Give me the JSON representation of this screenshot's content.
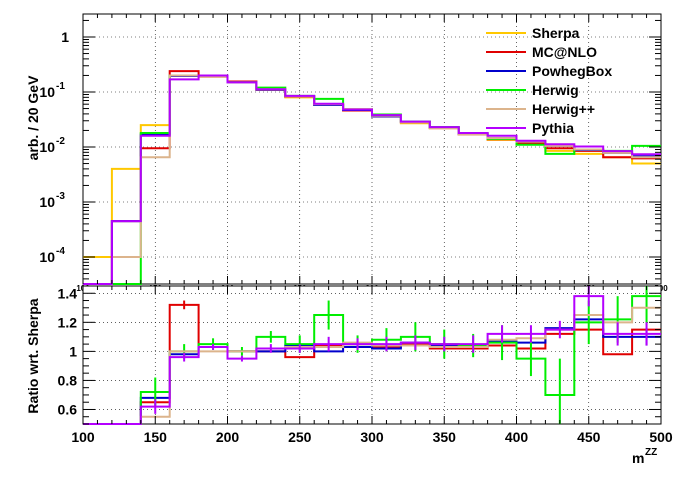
{
  "colors": {
    "Sherpa": "#ffc800",
    "MC@NLO": "#e00000",
    "PowhegBox": "#0000cc",
    "Herwig": "#00ee00",
    "Herwig++": "#dcb48c",
    "Pythia": "#b400ff"
  },
  "chart_data": [
    {
      "type": "line",
      "title": "",
      "ylabel": "arb. / 20 GeV",
      "xlabel": "",
      "x_bin_edges": [
        100,
        120,
        140,
        160,
        180,
        200,
        220,
        240,
        260,
        280,
        300,
        320,
        340,
        360,
        380,
        400,
        420,
        440,
        460,
        480,
        500
      ],
      "xlim": [
        100,
        500
      ],
      "ylim": [
        2e-05,
        5
      ],
      "log_y": true,
      "x_ticks": [
        "100",
        "150",
        "200",
        "250",
        "300",
        "350",
        "400",
        "450",
        "500"
      ],
      "y_ticks": [
        "1",
        "10^-1",
        "10^-2",
        "10^-3",
        "10^-4"
      ],
      "grid": true,
      "legend_position": "top-right",
      "series": [
        {
          "name": "Sherpa",
          "values": [
            0.0001,
            0.004,
            0.025,
            0.2,
            0.19,
            0.15,
            0.11,
            0.08,
            0.06,
            0.046,
            0.036,
            0.027,
            0.022,
            0.017,
            0.0135,
            0.0115,
            0.0085,
            0.0075,
            0.0065,
            0.005
          ]
        },
        {
          "name": "MC@NLO",
          "values": [
            2e-05,
            0.00045,
            0.0095,
            0.24,
            0.19,
            0.155,
            0.11,
            0.082,
            0.058,
            0.046,
            0.036,
            0.028,
            0.022,
            0.017,
            0.0138,
            0.0117,
            0.0095,
            0.0085,
            0.0065,
            0.0062
          ]
        },
        {
          "name": "PowhegBox",
          "values": [
            2e-05,
            0.00045,
            0.017,
            0.195,
            0.195,
            0.15,
            0.11,
            0.083,
            0.058,
            0.047,
            0.036,
            0.029,
            0.023,
            0.0175,
            0.0145,
            0.0125,
            0.0105,
            0.0088,
            0.0078,
            0.0068
          ]
        },
        {
          "name": "Herwig",
          "values": [
            2e-05,
            2e-05,
            0.018,
            0.2,
            0.2,
            0.15,
            0.12,
            0.085,
            0.075,
            0.048,
            0.039,
            0.029,
            0.023,
            0.018,
            0.014,
            0.011,
            0.0075,
            0.009,
            0.0085,
            0.0105
          ]
        },
        {
          "name": "Herwig++",
          "values": [
            2e-05,
            0.0001,
            0.0065,
            0.2,
            0.19,
            0.15,
            0.112,
            0.083,
            0.06,
            0.049,
            0.037,
            0.028,
            0.022,
            0.017,
            0.0145,
            0.0125,
            0.0105,
            0.009,
            0.0078,
            0.0065
          ]
        },
        {
          "name": "Pythia",
          "values": [
            2e-05,
            0.00045,
            0.016,
            0.17,
            0.2,
            0.15,
            0.112,
            0.085,
            0.061,
            0.048,
            0.038,
            0.029,
            0.023,
            0.018,
            0.016,
            0.013,
            0.0112,
            0.0102,
            0.0084,
            0.0074
          ]
        }
      ]
    },
    {
      "type": "line",
      "title": "",
      "ylabel": "Ratio wrt. Sherpa",
      "xlabel": "m^ZZ",
      "x_bin_edges": [
        100,
        120,
        140,
        160,
        180,
        200,
        220,
        240,
        260,
        280,
        300,
        320,
        340,
        360,
        380,
        400,
        420,
        440,
        460,
        480,
        500
      ],
      "xlim": [
        100,
        500
      ],
      "ylim": [
        0.5,
        1.45
      ],
      "log_y": false,
      "x_ticks": [
        "100",
        "150",
        "200",
        "250",
        "300",
        "350",
        "400",
        "450",
        "500"
      ],
      "y_ticks": [
        "0.6",
        "0.8",
        "1",
        "1.2",
        "1.4"
      ],
      "grid": true,
      "series": [
        {
          "name": "MC@NLO",
          "values": [
            0.45,
            0.45,
            0.65,
            1.32,
            1.03,
            1.0,
            1.0,
            0.96,
            1.04,
            1.05,
            1.03,
            1.05,
            1.02,
            1.02,
            1.04,
            1.02,
            1.12,
            1.15,
            0.98,
            1.15
          ]
        },
        {
          "name": "PowhegBox",
          "values": [
            0.45,
            0.45,
            0.68,
            0.98,
            1.03,
            1.0,
            1.0,
            1.04,
            1.0,
            1.03,
            1.02,
            1.06,
            1.04,
            1.03,
            1.07,
            1.06,
            1.16,
            1.22,
            1.1,
            1.1
          ]
        },
        {
          "name": "Herwig",
          "values": [
            0.45,
            0.45,
            0.72,
            1.0,
            1.05,
            1.0,
            1.1,
            1.05,
            1.25,
            1.05,
            1.08,
            1.1,
            1.05,
            1.04,
            1.06,
            0.95,
            0.7,
            1.2,
            1.22,
            1.38
          ]
        },
        {
          "name": "Herwig++",
          "values": [
            0.45,
            0.45,
            0.55,
            1.0,
            1.0,
            1.0,
            1.02,
            1.03,
            1.03,
            1.06,
            1.04,
            1.04,
            1.03,
            1.03,
            1.08,
            1.09,
            1.15,
            1.25,
            1.2,
            1.3
          ]
        },
        {
          "name": "Pythia",
          "values": [
            0.45,
            0.45,
            0.62,
            0.96,
            1.03,
            0.95,
            1.02,
            1.02,
            1.05,
            1.05,
            1.05,
            1.06,
            1.05,
            1.05,
            1.12,
            1.12,
            1.15,
            1.38,
            1.12,
            1.12
          ]
        }
      ],
      "error_bars": {
        "Herwig": [
          0,
          0,
          0.1,
          0.05,
          0.04,
          0.03,
          0.04,
          0.06,
          0.1,
          0.06,
          0.08,
          0.1,
          0.1,
          0.08,
          0.12,
          0.12,
          0.25,
          0.15,
          0.16,
          0.2
        ],
        "Pythia": [
          0,
          0,
          0.05,
          0.03,
          0.02,
          0.02,
          0.03,
          0.03,
          0.05,
          0.04,
          0.05,
          0.05,
          0.05,
          0.06,
          0.06,
          0.06,
          0.06,
          0.07,
          0.08,
          0.08
        ],
        "PowhegBox": [
          0,
          0,
          0,
          0,
          0,
          0,
          0,
          0,
          0,
          0,
          0,
          0,
          0,
          0,
          0,
          0,
          0,
          0,
          0,
          0.06
        ],
        "MC@NLO": [
          0,
          0,
          0,
          0.03,
          0,
          0,
          0,
          0,
          0,
          0,
          0,
          0,
          0,
          0,
          0,
          0,
          0,
          0,
          0,
          0
        ]
      }
    }
  ],
  "labels": {
    "top_ylabel": "arb. / 20 GeV",
    "bottom_ylabel": "Ratio wrt. Sherpa",
    "xlabel_main": "m",
    "xlabel_sup": "ZZ",
    "top_ytick_1": "1",
    "top_ytick_10": "10",
    "top_exp": [
      "-1",
      "-2",
      "-3",
      "-4"
    ],
    "bottom_yticks": [
      "1.4",
      "1.2",
      "1",
      "0.8",
      "0.6"
    ],
    "bottom_xticks": [
      "100",
      "150",
      "200",
      "250",
      "300",
      "350",
      "400",
      "450",
      "500"
    ],
    "top_xticks": [
      "100",
      "150",
      "200",
      "250",
      "300",
      "350",
      "400",
      "450",
      "500"
    ]
  },
  "legend": [
    "Sherpa",
    "MC@NLO",
    "PowhegBox",
    "Herwig",
    "Herwig++",
    "Pythia"
  ]
}
